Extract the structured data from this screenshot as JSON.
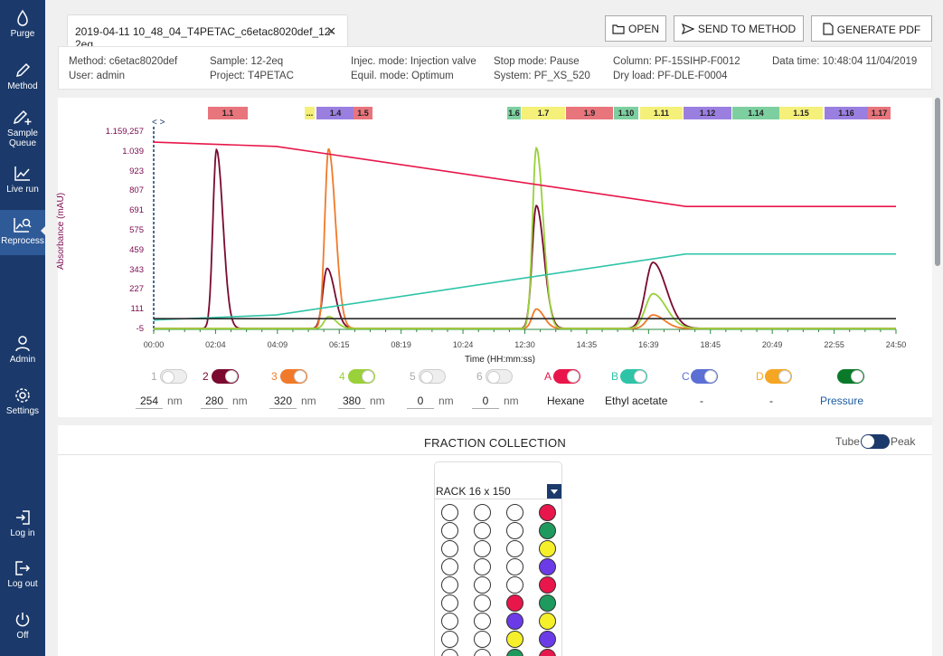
{
  "nav": [
    {
      "id": "purge",
      "label": "Purge",
      "icon": "drop-icon"
    },
    {
      "id": "method",
      "label": "Method",
      "icon": "pencil-icon"
    },
    {
      "id": "sample-queue",
      "label": "Sample Queue",
      "icon": "pencil-plus-icon"
    },
    {
      "id": "live-run",
      "label": "Live run",
      "icon": "line-chart-icon"
    },
    {
      "id": "reprocess",
      "label": "Reprocess",
      "icon": "chart-search-icon",
      "active": true
    },
    {
      "id": "admin",
      "label": "Admin",
      "icon": "user-icon"
    },
    {
      "id": "settings",
      "label": "Settings",
      "icon": "gear-icon"
    },
    {
      "id": "log-in",
      "label": "Log in",
      "icon": "login-icon"
    },
    {
      "id": "log-out",
      "label": "Log out",
      "icon": "logout-icon"
    },
    {
      "id": "off",
      "label": "Off",
      "icon": "power-icon"
    }
  ],
  "tab": {
    "title": "2019-04-11 10_48_04_T4PETAC_c6etac8020def_12-2eq",
    "close": "✕"
  },
  "toolbar": {
    "open": "OPEN",
    "send": "SEND TO METHOD",
    "pdf": "GENERATE PDF"
  },
  "info": {
    "method": "Method: c6etac8020def",
    "user": "User: admin",
    "sample": "Sample: 12-2eq",
    "project": "Project: T4PETAC",
    "injec": "Injec. mode: Injection valve",
    "equil": "Equil. mode: Optimum",
    "stop": "Stop mode: Pause",
    "system": "System: PF_XS_520",
    "column": "Column: PF-15SIHP-F0012",
    "dryload": "Dry load: PF-DLE-F0004",
    "datatime": "Data time: 10:48:04 11/04/2019"
  },
  "fractions": [
    {
      "label": "1.1",
      "color": "#e8747c"
    },
    {
      "label": "...",
      "color": "#f5f07a"
    },
    {
      "label": "1.4",
      "color": "#9b7fe0"
    },
    {
      "label": "1.5",
      "color": "#e8747c"
    },
    {
      "label": "1.6",
      "color": "#7dcf9f"
    },
    {
      "label": "1.7",
      "color": "#f5f07a"
    },
    {
      "label": "1.9",
      "color": "#e8747c"
    },
    {
      "label": "1.10",
      "color": "#7dcf9f"
    },
    {
      "label": "1.11",
      "color": "#f5f07a"
    },
    {
      "label": "1.12",
      "color": "#9b7fe0"
    },
    {
      "label": "1.14",
      "color": "#7dcf9f"
    },
    {
      "label": "1.15",
      "color": "#f5f07a"
    },
    {
      "label": "1.16",
      "color": "#9b7fe0"
    },
    {
      "label": "1.17",
      "color": "#e8747c"
    }
  ],
  "chart_data": {
    "type": "line",
    "ylabel": "Absorbance (mAU)",
    "xlabel": "Time (HH:mm:ss)",
    "y_ticks": [
      "1.159,257",
      "1.039",
      "923",
      "807",
      "691",
      "575",
      "459",
      "343",
      "227",
      "111",
      "-5"
    ],
    "x_ticks": [
      "00:00",
      "02:04",
      "04:09",
      "06:15",
      "08:19",
      "10:24",
      "12:30",
      "14:35",
      "16:39",
      "18:45",
      "20:49",
      "22:55",
      "24:50"
    ],
    "xlim_min": [
      0,
      24.83
    ],
    "ylim": [
      -5,
      1159.257
    ],
    "series": [
      {
        "name": "280",
        "color": "#7a0a2f",
        "peaks": [
          [
            2.1,
            1055,
            0.17
          ],
          [
            5.8,
            355,
            0.2
          ],
          [
            12.8,
            725,
            0.2
          ],
          [
            16.7,
            390,
            0.35
          ]
        ]
      },
      {
        "name": "320",
        "color": "#f07a2a",
        "peaks": [
          [
            5.85,
            1060,
            0.18
          ],
          [
            12.8,
            115,
            0.2
          ],
          [
            16.7,
            80,
            0.3
          ]
        ]
      },
      {
        "name": "380",
        "color": "#9ad03a",
        "peaks": [
          [
            5.85,
            70,
            0.2
          ],
          [
            12.8,
            1065,
            0.18
          ],
          [
            16.7,
            205,
            0.35
          ]
        ]
      },
      {
        "name": "Hexane",
        "color": "#e8164a",
        "points": [
          [
            0,
            1100
          ],
          [
            4.1,
            1075
          ],
          [
            17.8,
            720
          ],
          [
            24.83,
            720
          ]
        ]
      },
      {
        "name": "Ethyl acetate",
        "color": "#2fc4a8",
        "points": [
          [
            0,
            50
          ],
          [
            4.1,
            80
          ],
          [
            17.8,
            440
          ],
          [
            24.83,
            440
          ]
        ]
      },
      {
        "name": "Pressure",
        "color": "#2b2b2b",
        "points": [
          [
            0,
            58
          ],
          [
            24.83,
            58
          ]
        ]
      }
    ]
  },
  "channels": [
    {
      "num": "1",
      "color": "#e0e0e0",
      "on": false
    },
    {
      "num": "2",
      "color": "#7a0a2f",
      "on": true
    },
    {
      "num": "3",
      "color": "#f07a2a",
      "on": true
    },
    {
      "num": "4",
      "color": "#9ad03a",
      "on": true
    },
    {
      "num": "5",
      "color": "#e0e0e0",
      "on": false
    },
    {
      "num": "6",
      "color": "#e0e0e0",
      "on": false
    },
    {
      "num": "A",
      "color": "#e8164a",
      "on": true
    },
    {
      "num": "B",
      "color": "#2fc4a8",
      "on": true
    },
    {
      "num": "C",
      "color": "#5b6fd4",
      "on": true
    },
    {
      "num": "D",
      "color": "#f5a623",
      "on": true
    },
    {
      "num": "",
      "color": "#0a7a2a",
      "on": true
    }
  ],
  "wavelengths": [
    "254",
    "280",
    "320",
    "380",
    "0",
    "0"
  ],
  "nm": "nm",
  "solvents": [
    "Hexane",
    "Ethyl acetate",
    "-",
    "-",
    "Pressure"
  ],
  "fraction_collection": {
    "title": "FRACTION COLLECTION",
    "tube": "Tube",
    "peak": "Peak",
    "rack_label": "RACK 16 x 150",
    "columns": [
      [
        "",
        "",
        "",
        "",
        "",
        "",
        "",
        "",
        ""
      ],
      [
        "",
        "",
        "",
        "",
        "",
        "",
        "",
        "",
        ""
      ],
      [
        "",
        "",
        "",
        "",
        "",
        "#e8164a",
        "#6b3be8",
        "#f5f02a",
        "#1f9a5e"
      ],
      [
        "#e8164a",
        "#1f9a5e",
        "#f5f02a",
        "#6b3be8",
        "#e8164a",
        "#1f9a5e",
        "#f5f02a",
        "#6b3be8",
        "#e8164a"
      ]
    ]
  }
}
